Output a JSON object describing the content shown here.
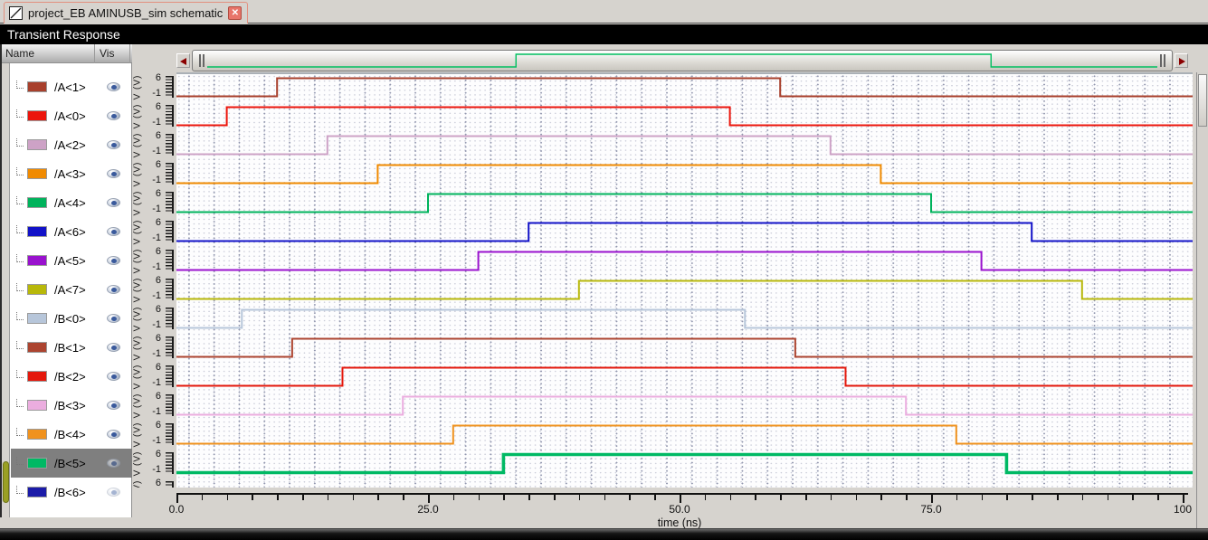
{
  "tab": {
    "title": "project_EB AMINUSB_sim schematic",
    "close_glyph": "✕"
  },
  "header": {
    "title": "Transient Response"
  },
  "panel": {
    "name_col": "Name",
    "vis_col": "Vis"
  },
  "scrollbar": {
    "preview_color": "#00C060",
    "preview_rise_pct": 32.5,
    "preview_fall_pct": 82.5,
    "left_arrow": "◄",
    "right_arrow": "►"
  },
  "chart_data": {
    "type": "digital-pulse-waveforms",
    "title": "Transient Response",
    "xlabel": "time (ns)",
    "x_range_ns": [
      0,
      100
    ],
    "x_major_tick_values": [
      0,
      25,
      50,
      75,
      100
    ],
    "x_major_tick_labels": [
      "0.0",
      "25.0",
      "50.0",
      "75.0",
      "100"
    ],
    "x_minor_tick_step_ns": 2.5,
    "y_axis_label": "V (V)",
    "y_top_tick_label": "6",
    "y_bottom_tick_label": "-1",
    "low_level_v": 0,
    "high_level_v": 5,
    "grid": "dotted",
    "signals": [
      {
        "name": "/A<1>",
        "color": "#A8402C",
        "rise_ns": 10,
        "fall_ns": 60,
        "selected": false,
        "visible": true
      },
      {
        "name": "/A<0>",
        "color": "#EC150C",
        "rise_ns": 5,
        "fall_ns": 55,
        "selected": false,
        "visible": true
      },
      {
        "name": "/A<2>",
        "color": "#CDA2C6",
        "rise_ns": 15,
        "fall_ns": 65,
        "selected": false,
        "visible": true
      },
      {
        "name": "/A<3>",
        "color": "#F08A00",
        "rise_ns": 20,
        "fall_ns": 70,
        "selected": false,
        "visible": true
      },
      {
        "name": "/A<4>",
        "color": "#00B35C",
        "rise_ns": 25,
        "fall_ns": 75,
        "selected": false,
        "visible": true
      },
      {
        "name": "/A<6>",
        "color": "#1212C8",
        "rise_ns": 35,
        "fall_ns": 85,
        "selected": false,
        "visible": true
      },
      {
        "name": "/A<5>",
        "color": "#9912CE",
        "rise_ns": 30,
        "fall_ns": 80,
        "selected": false,
        "visible": true
      },
      {
        "name": "/A<7>",
        "color": "#B8B80A",
        "rise_ns": 40,
        "fall_ns": 90,
        "selected": false,
        "visible": true
      },
      {
        "name": "/B<0>",
        "color": "#B7C6DA",
        "rise_ns": 6.5,
        "fall_ns": 56.5,
        "selected": false,
        "visible": true
      },
      {
        "name": "/B<1>",
        "color": "#AC4430",
        "rise_ns": 11.5,
        "fall_ns": 61.5,
        "selected": false,
        "visible": true
      },
      {
        "name": "/B<2>",
        "color": "#E4180C",
        "rise_ns": 16.5,
        "fall_ns": 66.5,
        "selected": false,
        "visible": true
      },
      {
        "name": "/B<3>",
        "color": "#EBADDF",
        "rise_ns": 22.5,
        "fall_ns": 72.5,
        "selected": false,
        "visible": true
      },
      {
        "name": "/B<4>",
        "color": "#F0921E",
        "rise_ns": 27.5,
        "fall_ns": 77.5,
        "selected": false,
        "visible": true
      },
      {
        "name": "/B<5>",
        "color": "#00B964",
        "rise_ns": 32.5,
        "fall_ns": 82.5,
        "selected": true,
        "visible": true
      }
    ],
    "partial_bottom_signal": {
      "name": "/B<6>",
      "color": "#1B1BA8",
      "clipped": true
    }
  }
}
